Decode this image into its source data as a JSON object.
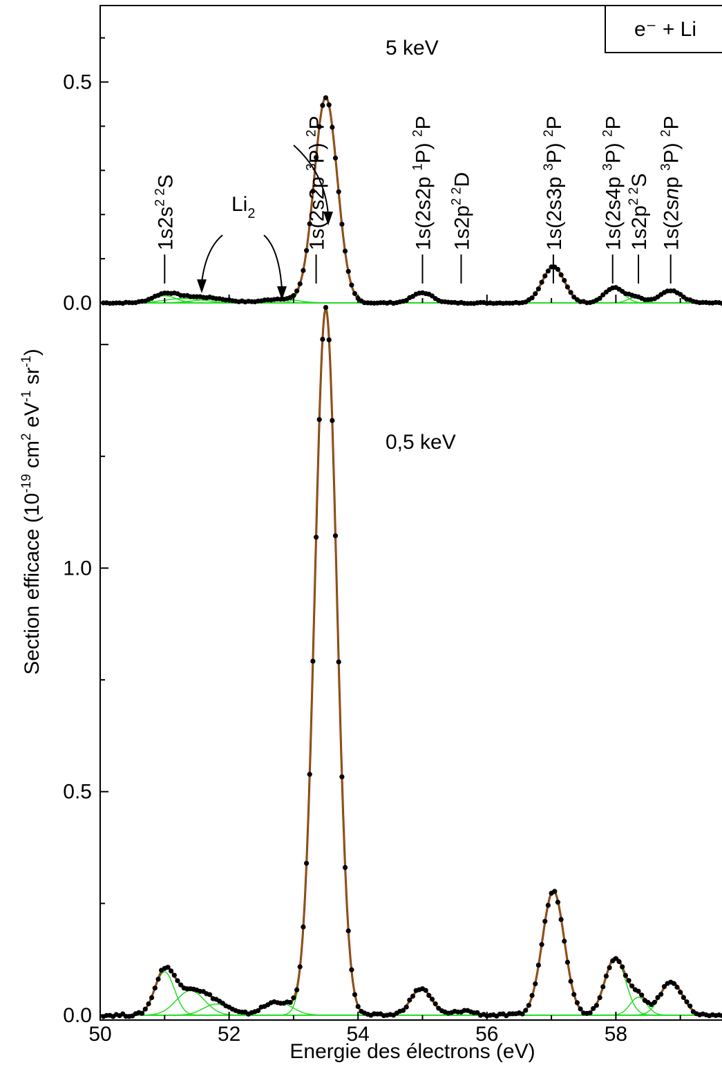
{
  "chart_data": {
    "type": "scatter",
    "xlabel": "Energie des électrons (eV)",
    "ylabel": {
      "main": "Section efficace (10",
      "exp1": "-19",
      "mid": " cm",
      "exp2": "2",
      "mid2": " eV",
      "exp3": "-1",
      "mid3": " sr",
      "exp4": "-1",
      "end": ")"
    },
    "xlim": [
      50,
      59.7
    ],
    "x_ticks": [
      "50",
      "52",
      "54",
      "56",
      "58"
    ],
    "legend_box": "e⁻ + Li",
    "colors": {
      "points": "#000000",
      "total_fit": "#e00000",
      "component_fit": "#22dd22",
      "envelope": "#3a8a1a"
    },
    "panels": [
      {
        "panel": "top",
        "energy_label": "5 keV",
        "ylim": [
          0,
          0.67
        ],
        "y_ticks": [
          "0.0",
          "0.5"
        ],
        "peaks": [
          {
            "center": 51.0,
            "height": 0.016,
            "width": 0.18
          },
          {
            "center": 51.3,
            "height": 0.01,
            "width": 0.3
          },
          {
            "center": 51.75,
            "height": 0.008,
            "width": 0.3
          },
          {
            "center": 52.8,
            "height": 0.009,
            "width": 0.25
          },
          {
            "center": 53.5,
            "height": 0.465,
            "width": 0.18
          },
          {
            "center": 55.0,
            "height": 0.023,
            "width": 0.16
          },
          {
            "center": 57.03,
            "height": 0.082,
            "width": 0.17
          },
          {
            "center": 57.97,
            "height": 0.034,
            "width": 0.15
          },
          {
            "center": 58.3,
            "height": 0.012,
            "width": 0.12
          },
          {
            "center": 58.85,
            "height": 0.027,
            "width": 0.17
          }
        ],
        "labels": [
          {
            "text": "1s2s",
            "sup": "2 2",
            "tail": "S",
            "x": 51.0
          },
          {
            "text": "1s(2s2p ",
            "sup": "3",
            "tail": "P) ",
            "sup2": "2",
            "tail2": "P",
            "x": 53.35
          },
          {
            "text": "1s(2s2p ",
            "sup": "1",
            "tail": "P) ",
            "sup2": "2",
            "tail2": "P",
            "x": 55.0
          },
          {
            "text": "1s2p",
            "sup": "2 2",
            "tail": "D",
            "x": 55.6
          },
          {
            "text": "1s(2s3p ",
            "sup": "3",
            "tail": "P) ",
            "sup2": "2",
            "tail2": "P",
            "x": 57.03
          },
          {
            "text": "1s(2s4p ",
            "sup": "3",
            "tail": "P) ",
            "sup2": "2",
            "tail2": "P",
            "x": 57.95
          },
          {
            "text": "1s2p",
            "sup": "2 2",
            "tail": "S",
            "x": 58.35
          },
          {
            "text": "1s(2s",
            "italic": "n",
            "text2": "p ",
            "sup": "3",
            "tail": "P) ",
            "sup2": "2",
            "tail2": "P",
            "x": 58.85
          }
        ],
        "li2_label": {
          "text": "Li",
          "sub": "2"
        }
      },
      {
        "panel": "bottom",
        "energy_label": "0,5 keV",
        "ylim": [
          0,
          1.59
        ],
        "y_ticks": [
          "0.0",
          "0.5",
          "1.0"
        ],
        "peaks": [
          {
            "center": 51.0,
            "height": 0.097,
            "width": 0.15
          },
          {
            "center": 51.4,
            "height": 0.055,
            "width": 0.22
          },
          {
            "center": 51.8,
            "height": 0.025,
            "width": 0.2
          },
          {
            "center": 52.75,
            "height": 0.03,
            "width": 0.22
          },
          {
            "center": 53.5,
            "height": 1.58,
            "width": 0.17
          },
          {
            "center": 54.98,
            "height": 0.06,
            "width": 0.16
          },
          {
            "center": 55.65,
            "height": 0.01,
            "width": 0.15
          },
          {
            "center": 57.03,
            "height": 0.278,
            "width": 0.17
          },
          {
            "center": 57.99,
            "height": 0.128,
            "width": 0.16
          },
          {
            "center": 58.35,
            "height": 0.04,
            "width": 0.13
          },
          {
            "center": 58.86,
            "height": 0.075,
            "width": 0.17
          }
        ]
      }
    ]
  }
}
